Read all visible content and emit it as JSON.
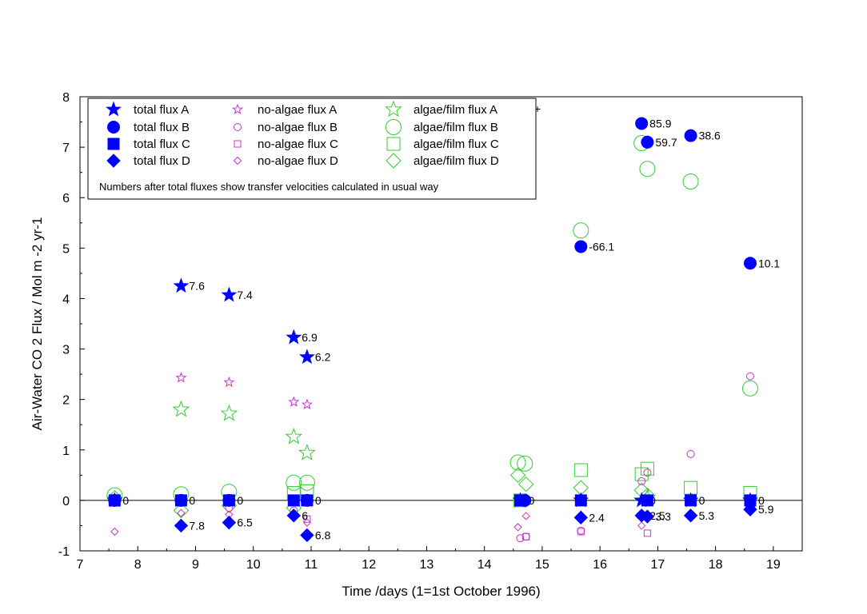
{
  "chart_data": {
    "type": "scatter",
    "xlabel": "Time /days (1=1st October 1996)",
    "ylabel": "Air-Water CO 2 Flux / Mol m -2 yr-1",
    "xlim": [
      7,
      19.5
    ],
    "ylim": [
      -1,
      8
    ],
    "xticks": [
      7,
      8,
      9,
      10,
      11,
      12,
      13,
      14,
      15,
      16,
      17,
      18,
      19
    ],
    "yticks": [
      -1,
      0,
      1,
      2,
      3,
      4,
      5,
      6,
      7,
      8
    ],
    "zero_line": 0,
    "legend_note": "Numbers after total fluxes show transfer velocities calculated in usual way",
    "colors": {
      "total": "#0000ff",
      "no_algae": "#cc33cc",
      "algae": "#33cc33"
    },
    "legend": [
      {
        "name": "total flux A",
        "group": "total",
        "marker": "star-filled"
      },
      {
        "name": "total flux B",
        "group": "total",
        "marker": "circle-filled"
      },
      {
        "name": "total flux C",
        "group": "total",
        "marker": "square-filled"
      },
      {
        "name": "total flux D",
        "group": "total",
        "marker": "diamond-filled"
      },
      {
        "name": "no-algae flux A",
        "group": "no_algae",
        "marker": "star-open-small"
      },
      {
        "name": "no-algae flux B",
        "group": "no_algae",
        "marker": "circle-open-small"
      },
      {
        "name": "no-algae flux C",
        "group": "no_algae",
        "marker": "square-open-small"
      },
      {
        "name": "no-algae flux D",
        "group": "no_algae",
        "marker": "diamond-open-small"
      },
      {
        "name": "algae/film flux A",
        "group": "algae",
        "marker": "star-open"
      },
      {
        "name": "algae/film flux B",
        "group": "algae",
        "marker": "circle-open"
      },
      {
        "name": "algae/film flux C",
        "group": "algae",
        "marker": "square-open"
      },
      {
        "name": "algae/film flux D",
        "group": "algae",
        "marker": "diamond-open"
      }
    ],
    "series": [
      {
        "name": "total flux A",
        "points": [
          {
            "x": 7.6,
            "y": 0.0,
            "label": "0"
          },
          {
            "x": 8.75,
            "y": 4.25,
            "label": "7.6"
          },
          {
            "x": 9.58,
            "y": 4.07,
            "label": "7.4"
          },
          {
            "x": 10.7,
            "y": 3.23,
            "label": "6.9"
          },
          {
            "x": 10.93,
            "y": 2.84,
            "label": "6.2"
          },
          {
            "x": 14.62,
            "y": 0.0,
            "label": "0"
          },
          {
            "x": 15.67,
            "y": 0.0
          },
          {
            "x": 16.72,
            "y": 0.0,
            "label": "0"
          },
          {
            "x": 17.57,
            "y": 0.0,
            "label": "0"
          },
          {
            "x": 18.6,
            "y": 0.0,
            "label": "0"
          }
        ]
      },
      {
        "name": "total flux B",
        "points": [
          {
            "x": 7.6,
            "y": 0.0
          },
          {
            "x": 8.75,
            "y": 0.0,
            "label": "0"
          },
          {
            "x": 9.58,
            "y": 0.0,
            "label": "0"
          },
          {
            "x": 10.93,
            "y": 0.0,
            "label": "0"
          },
          {
            "x": 14.7,
            "y": 0.0
          },
          {
            "x": 15.67,
            "y": 5.03,
            "label": "-66.1"
          },
          {
            "x": 16.72,
            "y": 7.47,
            "label": "85.9"
          },
          {
            "x": 16.82,
            "y": 7.1,
            "label": "59.7"
          },
          {
            "x": 17.57,
            "y": 7.23,
            "label": "38.6"
          },
          {
            "x": 18.6,
            "y": 4.7,
            "label": "10.1"
          }
        ]
      },
      {
        "name": "total flux C",
        "points": [
          {
            "x": 7.6,
            "y": 0.0
          },
          {
            "x": 8.75,
            "y": 0.0
          },
          {
            "x": 9.58,
            "y": 0.0
          },
          {
            "x": 10.7,
            "y": 0.0
          },
          {
            "x": 10.93,
            "y": 0.0
          },
          {
            "x": 14.62,
            "y": 0.0
          },
          {
            "x": 15.67,
            "y": 0.0
          },
          {
            "x": 16.82,
            "y": 0.0
          },
          {
            "x": 17.57,
            "y": 0.0
          },
          {
            "x": 18.6,
            "y": 0.0
          }
        ]
      },
      {
        "name": "total flux D",
        "points": [
          {
            "x": 8.75,
            "y": -0.5,
            "label": "7.8"
          },
          {
            "x": 9.58,
            "y": -0.44,
            "label": "6.5"
          },
          {
            "x": 10.7,
            "y": -0.3,
            "label": "6"
          },
          {
            "x": 10.93,
            "y": -0.69,
            "label": "6.8"
          },
          {
            "x": 15.67,
            "y": -0.34,
            "label": "2.4"
          },
          {
            "x": 16.72,
            "y": -0.3,
            "label": "2.5"
          },
          {
            "x": 16.82,
            "y": -0.32,
            "label": "3.3"
          },
          {
            "x": 17.57,
            "y": -0.3,
            "label": "5.3"
          },
          {
            "x": 18.6,
            "y": -0.18,
            "label": "5.9"
          }
        ]
      },
      {
        "name": "no-algae flux A",
        "points": [
          {
            "x": 8.75,
            "y": 2.43
          },
          {
            "x": 9.58,
            "y": 2.34
          },
          {
            "x": 10.7,
            "y": 1.95
          },
          {
            "x": 10.93,
            "y": 1.9
          }
        ]
      },
      {
        "name": "no-algae flux B",
        "points": [
          {
            "x": 7.6,
            "y": -0.05
          },
          {
            "x": 9.58,
            "y": -0.15
          },
          {
            "x": 10.7,
            "y": -0.2
          },
          {
            "x": 14.62,
            "y": -0.75
          },
          {
            "x": 14.72,
            "y": -0.72
          },
          {
            "x": 15.67,
            "y": -0.6
          },
          {
            "x": 16.72,
            "y": 0.38
          },
          {
            "x": 16.82,
            "y": 0.55
          },
          {
            "x": 17.57,
            "y": 0.92
          },
          {
            "x": 18.6,
            "y": 2.46
          }
        ]
      },
      {
        "name": "no-algae flux C",
        "points": [
          {
            "x": 10.93,
            "y": -0.37
          },
          {
            "x": 14.72,
            "y": -0.72
          },
          {
            "x": 15.67,
            "y": -0.62
          },
          {
            "x": 16.82,
            "y": -0.65
          }
        ]
      },
      {
        "name": "no-algae flux D",
        "points": [
          {
            "x": 7.6,
            "y": -0.62
          },
          {
            "x": 8.75,
            "y": -0.25
          },
          {
            "x": 9.58,
            "y": -0.28
          },
          {
            "x": 10.93,
            "y": -0.44
          },
          {
            "x": 14.58,
            "y": -0.53
          },
          {
            "x": 14.72,
            "y": -0.31
          },
          {
            "x": 16.72,
            "y": -0.5
          },
          {
            "x": 17.57,
            "y": -0.28
          },
          {
            "x": 18.6,
            "y": -0.15
          }
        ]
      },
      {
        "name": "algae/film flux A",
        "points": [
          {
            "x": 8.75,
            "y": 1.8
          },
          {
            "x": 9.58,
            "y": 1.72
          },
          {
            "x": 10.7,
            "y": 1.26
          },
          {
            "x": 10.93,
            "y": 0.94
          },
          {
            "x": 16.82,
            "y": 0.05
          }
        ]
      },
      {
        "name": "algae/film flux B",
        "points": [
          {
            "x": 7.6,
            "y": 0.1
          },
          {
            "x": 8.75,
            "y": 0.12
          },
          {
            "x": 9.58,
            "y": 0.17
          },
          {
            "x": 10.7,
            "y": 0.35
          },
          {
            "x": 10.93,
            "y": 0.35
          },
          {
            "x": 14.58,
            "y": 0.75
          },
          {
            "x": 14.7,
            "y": 0.73
          },
          {
            "x": 15.67,
            "y": 5.35
          },
          {
            "x": 16.72,
            "y": 7.08
          },
          {
            "x": 16.82,
            "y": 6.57
          },
          {
            "x": 17.57,
            "y": 6.32
          },
          {
            "x": 18.6,
            "y": 2.22
          }
        ]
      },
      {
        "name": "algae/film flux C",
        "points": [
          {
            "x": 10.7,
            "y": 0.15
          },
          {
            "x": 10.93,
            "y": 0.18
          },
          {
            "x": 14.62,
            "y": 0.0
          },
          {
            "x": 15.67,
            "y": 0.6
          },
          {
            "x": 16.72,
            "y": 0.52
          },
          {
            "x": 16.82,
            "y": 0.63
          },
          {
            "x": 17.57,
            "y": 0.25
          },
          {
            "x": 18.6,
            "y": 0.15
          }
        ]
      },
      {
        "name": "algae/film flux D",
        "points": [
          {
            "x": 7.6,
            "y": 0.05
          },
          {
            "x": 8.75,
            "y": -0.2
          },
          {
            "x": 9.58,
            "y": -0.1
          },
          {
            "x": 10.7,
            "y": -0.15
          },
          {
            "x": 14.58,
            "y": 0.5
          },
          {
            "x": 14.72,
            "y": 0.32
          },
          {
            "x": 15.67,
            "y": 0.25
          },
          {
            "x": 16.72,
            "y": 0.2
          },
          {
            "x": 16.82,
            "y": 0.1
          }
        ]
      }
    ]
  }
}
